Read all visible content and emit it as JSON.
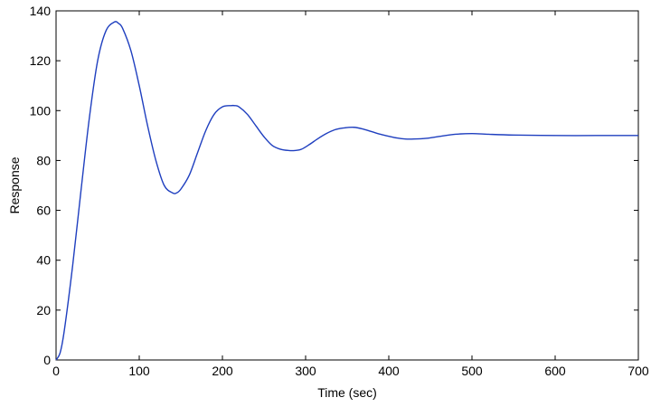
{
  "chart_data": {
    "type": "line",
    "title": "",
    "xlabel": "Time (sec)",
    "ylabel": "Response",
    "xlim": [
      0,
      700
    ],
    "ylim": [
      0,
      140
    ],
    "xticks": [
      0,
      100,
      200,
      300,
      400,
      500,
      600,
      700
    ],
    "yticks": [
      0,
      20,
      40,
      60,
      80,
      100,
      120,
      140
    ],
    "grid": false,
    "legend": "none",
    "series": [
      {
        "color": "#1f3fbf",
        "x": [
          0,
          5,
          10,
          20,
          30,
          40,
          50,
          60,
          70,
          75,
          80,
          90,
          100,
          110,
          120,
          130,
          140,
          145,
          150,
          160,
          170,
          180,
          190,
          200,
          210,
          215,
          220,
          230,
          240,
          250,
          260,
          270,
          280,
          287,
          295,
          305,
          315,
          325,
          335,
          345,
          358,
          370,
          380,
          390,
          400,
          410,
          420,
          430,
          445,
          460,
          480,
          500,
          520,
          550,
          600,
          650,
          700
        ],
        "y": [
          0,
          3,
          12,
          38,
          68,
          97,
          120,
          132,
          135.5,
          135,
          133,
          124,
          110,
          94,
          80,
          70,
          67,
          67,
          68.5,
          74,
          83,
          92,
          98.5,
          101.5,
          102,
          102,
          101.5,
          98.5,
          94,
          89.5,
          86,
          84.5,
          84,
          84,
          84.5,
          86.5,
          88.8,
          90.8,
          92.3,
          93,
          93.3,
          92.5,
          91.5,
          90.5,
          89.7,
          89,
          88.6,
          88.6,
          88.9,
          89.6,
          90.5,
          90.8,
          90.5,
          90.2,
          90,
          90,
          90
        ]
      }
    ]
  }
}
